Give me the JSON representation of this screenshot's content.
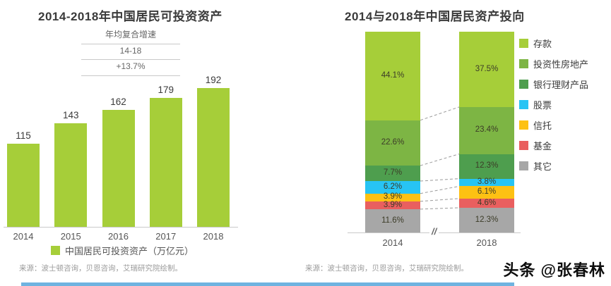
{
  "left_chart": {
    "title": "2014-2018年中国居民可投资资产",
    "annotation": {
      "label": "年均复合增速",
      "range": "14-18",
      "growth": "+13.7%"
    },
    "legend_label": "中国居民可投资资产（万亿元）",
    "source": "来源：波士顿咨询，贝恩咨询，艾瑞研究院绘制。",
    "chart_data": {
      "type": "bar",
      "title": "2014-2018年中国居民可投资资产",
      "categories": [
        "2014",
        "2015",
        "2016",
        "2017",
        "2018"
      ],
      "values": [
        115,
        143,
        162,
        179,
        192
      ],
      "unit": "万亿元",
      "bar_color": "#a6ce39",
      "ylim": [
        0,
        200
      ],
      "grid": false,
      "annotations": [
        "年均复合增速",
        "14-18",
        "+13.7%"
      ]
    }
  },
  "right_chart": {
    "title": "2014与2018年中国居民资产投向",
    "source": "来源：波士顿咨询，贝恩咨询，艾瑞研究院绘制。",
    "axis_break": "//",
    "chart_data": {
      "type": "stacked-bar",
      "title": "2014与2018年中国居民资产投向",
      "categories": [
        "2014",
        "2018"
      ],
      "series": [
        {
          "name": "存款",
          "color": "#a6ce39",
          "values": [
            44.1,
            37.5
          ]
        },
        {
          "name": "投资性房地产",
          "color": "#7db544",
          "values": [
            22.6,
            23.4
          ]
        },
        {
          "name": "银行理财产品",
          "color": "#4e9e4e",
          "values": [
            7.7,
            12.3
          ]
        },
        {
          "name": "股票",
          "color": "#27c4f4",
          "values": [
            6.2,
            3.8
          ]
        },
        {
          "name": "信托",
          "color": "#fdc113",
          "values": [
            3.9,
            6.1
          ]
        },
        {
          "name": "基金",
          "color": "#e95f5f",
          "values": [
            3.9,
            4.6
          ]
        },
        {
          "name": "其它",
          "color": "#a7a7a7",
          "values": [
            11.6,
            12.3
          ]
        }
      ],
      "value_suffix": "%",
      "ylim": [
        0,
        100
      ],
      "legend_position": "right"
    }
  },
  "watermark": "头条 @张春林",
  "accent_colors": {
    "bottom_strip": "#6fb3e0",
    "connector_line": "#9a9a9a"
  }
}
